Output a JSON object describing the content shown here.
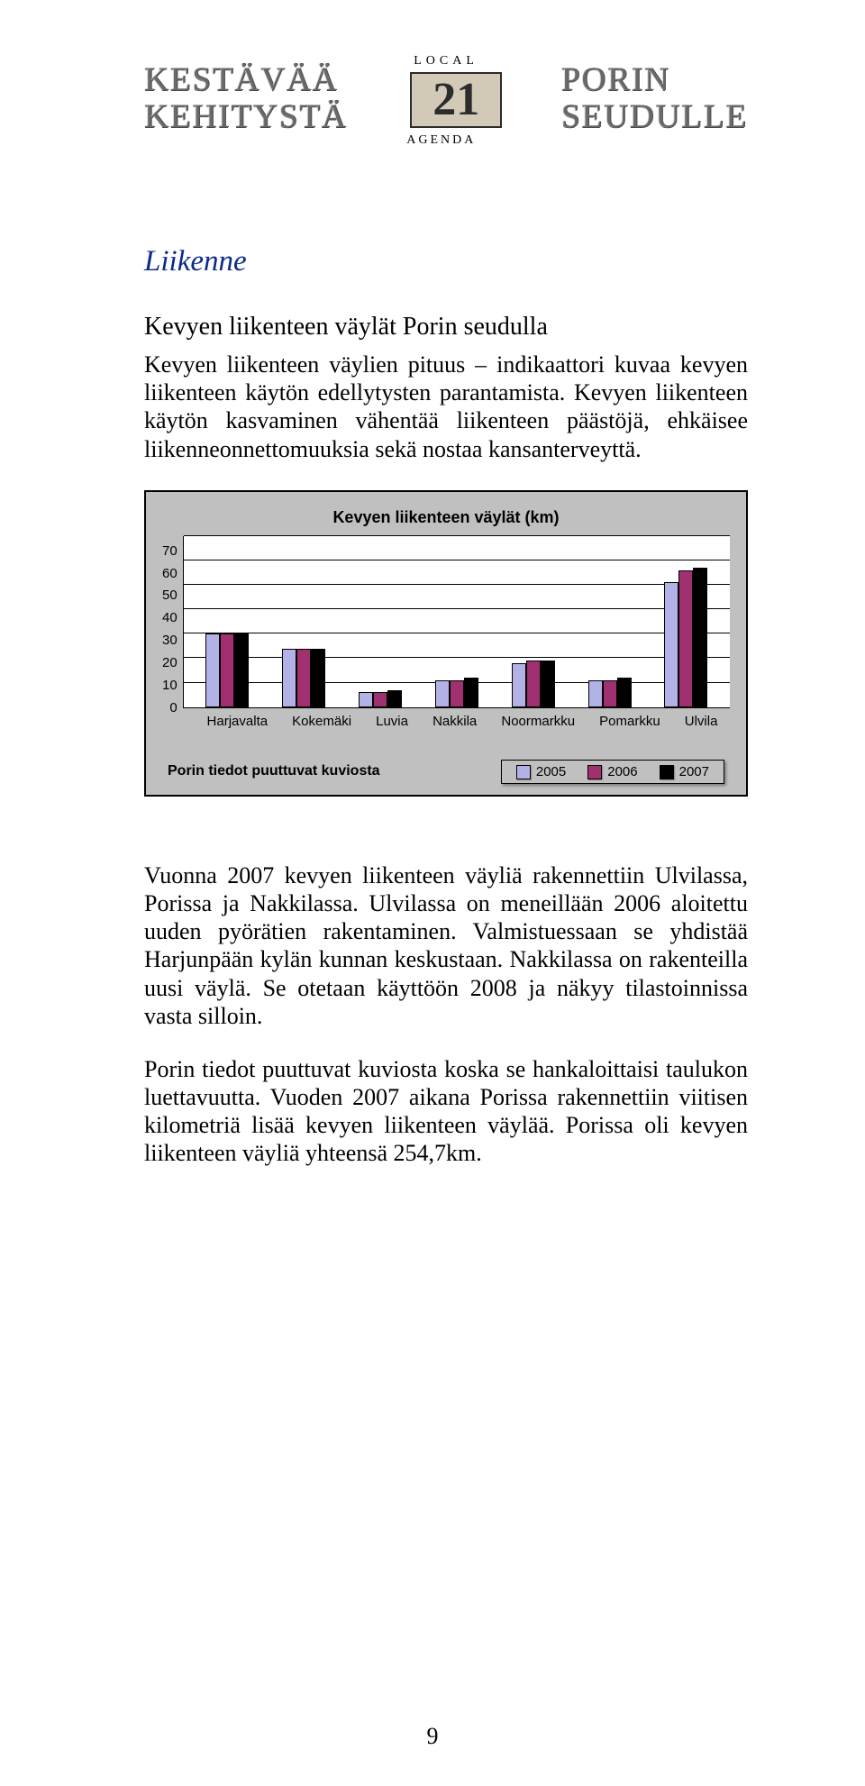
{
  "banner": {
    "left_line1": "KESTÄVÄÄ",
    "left_line2": "KEHITYSTÄ",
    "right_line1": "PORIN",
    "right_line2": "SEUDULLE",
    "logo_top": "LOCAL",
    "logo_num": "21",
    "logo_bot": "AGENDA"
  },
  "section_title": "Liikenne",
  "sub_heading": "Kevyen liikenteen väylät Porin seudulla",
  "para1": "Kevyen liikenteen väylien pituus – indikaattori kuvaa kevyen liikenteen käytön edellytysten parantamista. Kevyen liikenteen käytön kasvaminen vähentää liikenteen päästöjä, ehkäisee liikenneonnettomuuksia sekä nostaa kansanterveyttä.",
  "chart": {
    "type": "bar",
    "title": "Kevyen liikenteen väylät (km)",
    "categories": [
      "Harjavalta",
      "Kokemäki",
      "Luvia",
      "Nakkila",
      "Noormarkku",
      "Pomarkku",
      "Ulvila"
    ],
    "series_labels": [
      "2005",
      "2006",
      "2007"
    ],
    "series_colors": [
      "#b2b2e6",
      "#a03070",
      "#000000"
    ],
    "values": [
      [
        30,
        30,
        30
      ],
      [
        24,
        24,
        24
      ],
      [
        6,
        6,
        7
      ],
      [
        11,
        11,
        12
      ],
      [
        18,
        19,
        19
      ],
      [
        11,
        11,
        12
      ],
      [
        51,
        56,
        57
      ]
    ],
    "ymax": 70,
    "ytick_step": 10,
    "background_inner": "#ffffff",
    "background_outer": "#c0c0c0",
    "border_color": "#000000",
    "label_fontsize": 15,
    "title_fontsize": 18,
    "legend_note": "Porin tiedot puuttuvat kuviosta"
  },
  "para2": "Vuonna 2007 kevyen liikenteen väyliä rakennettiin Ulvilassa, Porissa ja Nakkilassa. Ulvilassa on meneillään 2006 aloitettu uuden pyörätien rakentaminen. Valmistuessaan se yhdistää Harjunpään kylän kunnan keskustaan. Nakkilassa on rakenteilla uusi väylä. Se otetaan käyttöön 2008 ja näkyy tilastoinnissa vasta silloin.",
  "para3": "Porin tiedot puuttuvat kuviosta koska se hankaloittaisi taulukon luettavuutta. Vuoden 2007 aikana Porissa rakennettiin viitisen kilometriä lisää kevyen liikenteen väylää. Porissa oli kevyen liikenteen väyliä yhteensä 254,7km.",
  "page_number": "9"
}
